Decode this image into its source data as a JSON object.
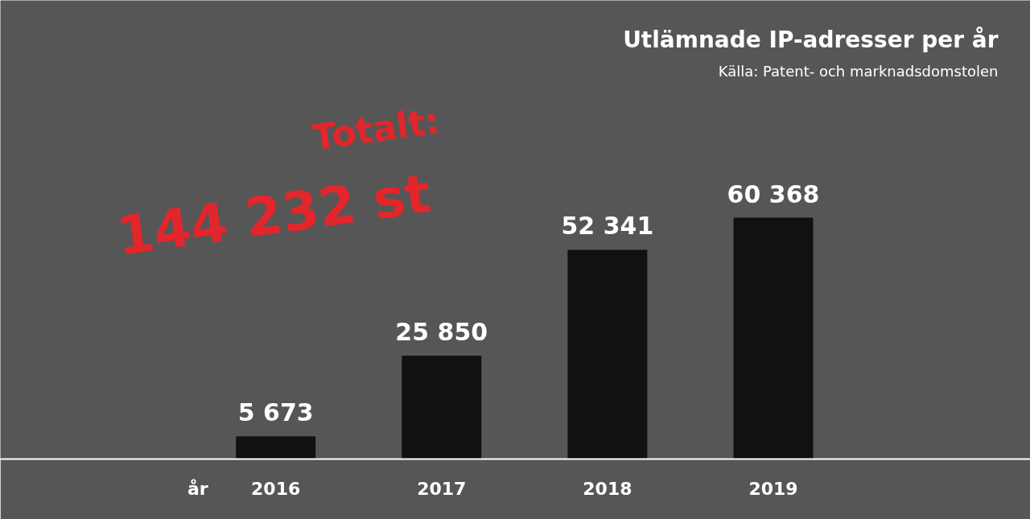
{
  "chart_data": {
    "type": "bar",
    "title": "Utlämnade IP-adresser per år",
    "xlabel": "år",
    "categories": [
      "2016",
      "2017",
      "2018",
      "2019"
    ],
    "values": [
      5673,
      25850,
      52341,
      60368
    ],
    "value_labels": [
      "5 673",
      "25 850",
      "52 341",
      "60 368"
    ],
    "color": "#111111",
    "grid": false,
    "annotations": [
      "Källa: Patent- och marknadsdomstolen",
      "Totalt:",
      "144 232 st"
    ]
  }
}
